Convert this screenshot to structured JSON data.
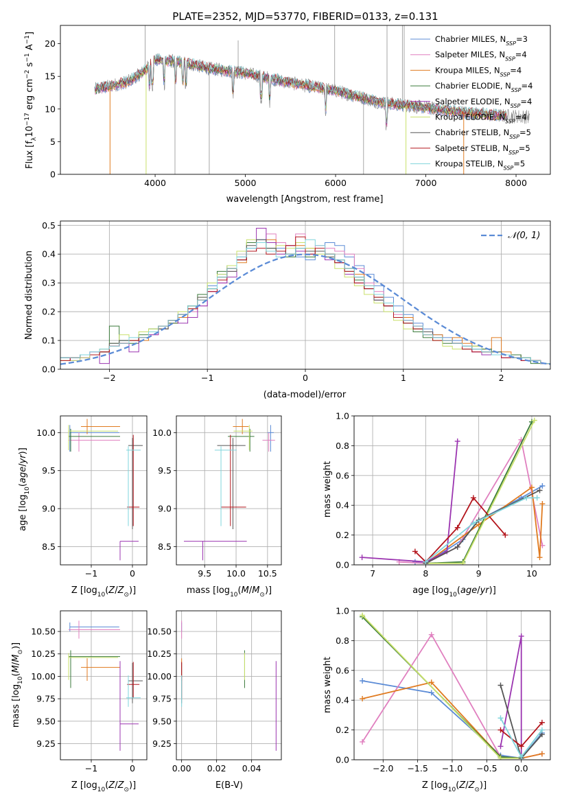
{
  "figure": {
    "title": "PLATE=2352, MJD=53770, FIBERID=0133, z=0.131"
  },
  "colors": {
    "chabrier_miles": "#5b8bd6",
    "salpeter_miles": "#e07fbf",
    "kroupa_miles": "#e07a1f",
    "chabrier_elodie": "#3a7a3a",
    "salpeter_elodie": "#9b34b0",
    "kroupa_elodie": "#c8e06a",
    "chabrier_stelib": "#555555",
    "salpeter_stelib": "#b3141b",
    "kroupa_stelib": "#7fd4dc",
    "data_gray": "#909090",
    "normal_dashed": "#5b8bd6",
    "grid": "#b0b0b0"
  },
  "chart_data": [
    {
      "id": "spectrum",
      "type": "line",
      "xlabel": "wavelength [Angstrom, rest frame]",
      "ylabel": "Flux [fλ10⁻¹⁷ erg cm⁻² s⁻¹ A⁻¹]",
      "xlim": [
        2950,
        8380
      ],
      "ylim": [
        0,
        22.8
      ],
      "xticks": [
        4000,
        5000,
        6000,
        7000,
        8000
      ],
      "yticks": [
        0,
        5,
        10,
        15,
        20
      ],
      "grid": false,
      "legend_position": "top-right",
      "legend": [
        {
          "label": "Chabrier MILES, N",
          "sub": "SSP",
          "suffix": "=3",
          "color_key": "chabrier_miles"
        },
        {
          "label": "Salpeter MILES, N",
          "sub": "SSP",
          "suffix": "=4",
          "color_key": "salpeter_miles"
        },
        {
          "label": "Kroupa MILES, N",
          "sub": "SSP",
          "suffix": "=4",
          "color_key": "kroupa_miles"
        },
        {
          "label": "Chabrier ELODIE, N",
          "sub": "SSP",
          "suffix": "=4",
          "color_key": "chabrier_elodie"
        },
        {
          "label": "Salpeter ELODIE, N",
          "sub": "SSP",
          "suffix": "=4",
          "color_key": "salpeter_elodie"
        },
        {
          "label": "Kroupa ELODIE, N",
          "sub": "SSP",
          "suffix": "=4",
          "color_key": "kroupa_elodie"
        },
        {
          "label": "Chabrier STELIB, N",
          "sub": "SSP",
          "suffix": "=5",
          "color_key": "chabrier_stelib"
        },
        {
          "label": "Salpeter STELIB, N",
          "sub": "SSP",
          "suffix": "=5",
          "color_key": "salpeter_stelib"
        },
        {
          "label": "Kroupa STELIB, N",
          "sub": "SSP",
          "suffix": "=5",
          "color_key": "kroupa_stelib"
        }
      ],
      "continuum_x": [
        3330,
        3500,
        3700,
        3850,
        4000,
        4300,
        4600,
        5000,
        5500,
        6000,
        6500,
        7000,
        7400,
        7800,
        8150
      ],
      "continuum_y": [
        13.0,
        13.5,
        14.2,
        15.5,
        17.5,
        17.2,
        16.2,
        15.5,
        14.0,
        12.8,
        11.0,
        10.2,
        9.5,
        9.0,
        8.8
      ]
    },
    {
      "id": "residuals",
      "type": "line",
      "xlabel": "(data-model)/error",
      "ylabel": "Normed distribution",
      "xlim": [
        -2.5,
        2.5
      ],
      "ylim": [
        0,
        0.515
      ],
      "xticks": [
        -2,
        -1,
        0,
        1,
        2
      ],
      "yticks": [
        0.0,
        0.1,
        0.2,
        0.3,
        0.4,
        0.5
      ],
      "grid": true,
      "legend_position": "top-right",
      "legend_label": "𝒩(0, 1)",
      "bin_width": 0.1,
      "bin_start": -2.5
    },
    {
      "id": "age_vs_Z",
      "type": "scatter",
      "xlabel": "Z [log₁₀(Z/Z⊙)]",
      "ylabel": "age  [log₁₀(age/yr)]",
      "xlim": [
        -1.75,
        0.35
      ],
      "ylim": [
        8.26,
        10.22
      ],
      "xticks": [
        -1,
        0
      ],
      "yticks": [
        8.5,
        9.0,
        9.5,
        10.0
      ],
      "grid": true
    },
    {
      "id": "age_vs_mass",
      "type": "scatter",
      "xlabel": "mass [log₁₀(M/M⊙)]",
      "ylabel": "",
      "xlim": [
        9.05,
        10.72
      ],
      "ylim": [
        8.26,
        10.22
      ],
      "xticks": [
        9.5,
        10.0,
        10.5
      ],
      "yticks": [
        8.5,
        9.0,
        9.5,
        10.0
      ],
      "grid": true
    },
    {
      "id": "massweight_vs_age",
      "type": "line",
      "xlabel": "age  [log₁₀(age/yr)]",
      "ylabel": "mass weight",
      "xlim": [
        6.65,
        10.35
      ],
      "ylim": [
        0,
        1.0
      ],
      "xticks": [
        7,
        8,
        9,
        10
      ],
      "yticks": [
        0.0,
        0.2,
        0.4,
        0.6,
        0.8,
        1.0
      ],
      "grid": true
    },
    {
      "id": "mass_vs_Z",
      "type": "scatter",
      "xlabel": "Z [log₁₀(Z/Z⊙)]",
      "ylabel": "mass [log₁₀(M/M⊙)]",
      "xlim": [
        -1.75,
        0.35
      ],
      "ylim": [
        9.07,
        10.73
      ],
      "xticks": [
        -1,
        0
      ],
      "yticks": [
        9.25,
        9.5,
        9.75,
        10.0,
        10.25,
        10.5
      ],
      "grid": true
    },
    {
      "id": "mass_vs_ebv",
      "type": "scatter",
      "xlabel": "E(B-V)",
      "ylabel": "",
      "xlim": [
        -0.003,
        0.057
      ],
      "ylim": [
        9.07,
        10.73
      ],
      "xticks": [
        0.0,
        0.02,
        0.04
      ],
      "yticks": [
        9.25,
        9.5,
        9.75,
        10.0,
        10.25,
        10.5
      ],
      "grid": true
    },
    {
      "id": "massweight_vs_Z",
      "type": "line",
      "xlabel": "Z [log₁₀(Z/Z⊙)]",
      "ylabel": "mass weight",
      "xlim": [
        -2.42,
        0.42
      ],
      "ylim": [
        0,
        1.0
      ],
      "xticks": [
        -2.0,
        -1.5,
        -1.0,
        -0.5,
        0.0
      ],
      "yticks": [
        0.0,
        0.2,
        0.4,
        0.6,
        0.8,
        1.0
      ],
      "grid": true
    }
  ],
  "fits": [
    {
      "key": "chabrier_miles",
      "age": 10.0,
      "age_err": [
        0.25,
        0.1
      ],
      "Z": -1.52,
      "Z_err": [
        0.0,
        1.2
      ],
      "mass": 10.55,
      "mass_err": [
        0.05,
        0.05
      ],
      "ebv": 0.0,
      "hist": [
        0.04,
        0.04,
        0.05,
        0.05,
        0.06,
        0.09,
        0.1,
        0.1,
        0.11,
        0.13,
        0.14,
        0.17,
        0.19,
        0.21,
        0.24,
        0.29,
        0.33,
        0.36,
        0.39,
        0.42,
        0.45,
        0.44,
        0.42,
        0.4,
        0.39,
        0.38,
        0.41,
        0.44,
        0.43,
        0.39,
        0.36,
        0.33,
        0.29,
        0.25,
        0.22,
        0.19,
        0.16,
        0.14,
        0.12,
        0.11,
        0.1,
        0.08,
        0.07,
        0.06,
        0.05,
        0.05,
        0.05,
        0.04,
        0.03,
        0.02
      ],
      "w_age": [
        [
          7.8,
          0.02
        ],
        [
          8.0,
          0.01
        ],
        [
          8.7,
          0.17
        ],
        [
          9.0,
          0.3
        ],
        [
          9.8,
          0.45
        ],
        [
          10.2,
          0.53
        ]
      ],
      "w_Z": [
        [
          -2.3,
          0.53
        ],
        [
          -1.3,
          0.45
        ],
        [
          -0.3,
          0.03
        ],
        [
          0.0,
          0.01
        ],
        [
          0.3,
          0.18
        ]
      ]
    },
    {
      "key": "salpeter_miles",
      "age": 9.9,
      "age_err": [
        0.15,
        0.1
      ],
      "Z": -1.3,
      "Z_err": [
        0.25,
        1.0
      ],
      "mass": 10.52,
      "mass_err": [
        0.1,
        0.1
      ],
      "ebv": 0.0,
      "hist": [
        0.03,
        0.04,
        0.04,
        0.05,
        0.07,
        0.08,
        0.09,
        0.1,
        0.11,
        0.12,
        0.15,
        0.16,
        0.18,
        0.2,
        0.22,
        0.27,
        0.3,
        0.34,
        0.38,
        0.41,
        0.44,
        0.47,
        0.44,
        0.43,
        0.47,
        0.41,
        0.43,
        0.42,
        0.41,
        0.4,
        0.35,
        0.3,
        0.27,
        0.22,
        0.19,
        0.17,
        0.15,
        0.13,
        0.11,
        0.1,
        0.09,
        0.08,
        0.06,
        0.05,
        0.05,
        0.05,
        0.04,
        0.03,
        0.03,
        0.02
      ],
      "w_age": [
        [
          7.5,
          0.02
        ],
        [
          8.0,
          0.01
        ],
        [
          8.6,
          0.12
        ],
        [
          9.8,
          0.84
        ],
        [
          10.2,
          0.13
        ]
      ],
      "w_Z": [
        [
          -2.3,
          0.12
        ],
        [
          -1.3,
          0.84
        ],
        [
          -0.3,
          0.02
        ],
        [
          0.0,
          0.01
        ],
        [
          0.3,
          0.04
        ]
      ]
    },
    {
      "key": "kroupa_miles",
      "age": 10.08,
      "age_err": [
        0.1,
        0.1
      ],
      "Z": -1.1,
      "Z_err": [
        0.15,
        0.8
      ],
      "mass": 10.1,
      "mass_err": [
        0.15,
        0.1
      ],
      "ebv": 0.0,
      "hist": [
        0.04,
        0.04,
        0.05,
        0.05,
        0.06,
        0.08,
        0.09,
        0.1,
        0.1,
        0.13,
        0.14,
        0.16,
        0.18,
        0.21,
        0.24,
        0.28,
        0.32,
        0.35,
        0.37,
        0.41,
        0.44,
        0.45,
        0.41,
        0.4,
        0.43,
        0.42,
        0.41,
        0.4,
        0.38,
        0.35,
        0.33,
        0.29,
        0.26,
        0.23,
        0.2,
        0.18,
        0.15,
        0.13,
        0.12,
        0.1,
        0.11,
        0.09,
        0.08,
        0.07,
        0.11,
        0.06,
        0.05,
        0.04,
        0.03,
        0.02
      ],
      "w_age": [
        [
          8.0,
          0.01
        ],
        [
          9.0,
          0.27
        ],
        [
          10.0,
          0.52
        ],
        [
          10.15,
          0.05
        ],
        [
          10.2,
          0.41
        ]
      ],
      "w_Z": [
        [
          -2.3,
          0.41
        ],
        [
          -1.3,
          0.52
        ],
        [
          -0.3,
          0.02
        ],
        [
          0.0,
          0.01
        ],
        [
          0.3,
          0.04
        ]
      ]
    },
    {
      "key": "chabrier_elodie",
      "age": 9.95,
      "age_err": [
        0.2,
        0.1
      ],
      "Z": -1.5,
      "Z_err": [
        0.05,
        1.2
      ],
      "mass": 10.22,
      "mass_err": [
        0.35,
        0.07
      ],
      "ebv": 0.036,
      "hist": [
        0.04,
        0.04,
        0.05,
        0.05,
        0.06,
        0.15,
        0.1,
        0.09,
        0.12,
        0.14,
        0.15,
        0.16,
        0.19,
        0.22,
        0.26,
        0.28,
        0.34,
        0.35,
        0.38,
        0.44,
        0.44,
        0.42,
        0.41,
        0.39,
        0.44,
        0.39,
        0.41,
        0.4,
        0.37,
        0.34,
        0.31,
        0.28,
        0.25,
        0.22,
        0.18,
        0.16,
        0.13,
        0.11,
        0.1,
        0.09,
        0.09,
        0.07,
        0.08,
        0.07,
        0.06,
        0.05,
        0.05,
        0.04,
        0.02,
        0.02
      ],
      "w_age": [
        [
          8.0,
          0.01
        ],
        [
          8.7,
          0.02
        ],
        [
          10.0,
          0.96
        ]
      ],
      "w_Z": [
        [
          -2.3,
          0.96
        ],
        [
          -0.3,
          0.02
        ],
        [
          0.0,
          0.01
        ]
      ]
    },
    {
      "key": "salpeter_elodie",
      "age": 8.57,
      "age_err": [
        0.25,
        0.0
      ],
      "Z": -0.3,
      "Z_err": [
        0.0,
        0.45
      ],
      "mass": 9.47,
      "mass_err": [
        0.3,
        0.7
      ],
      "ebv": 0.054,
      "hist": [
        0.04,
        0.03,
        0.04,
        0.06,
        0.02,
        0.08,
        0.09,
        0.06,
        0.11,
        0.12,
        0.15,
        0.17,
        0.16,
        0.18,
        0.22,
        0.27,
        0.3,
        0.32,
        0.38,
        0.41,
        0.49,
        0.44,
        0.4,
        0.43,
        0.41,
        0.4,
        0.41,
        0.38,
        0.37,
        0.33,
        0.3,
        0.28,
        0.24,
        0.22,
        0.2,
        0.17,
        0.15,
        0.13,
        0.11,
        0.1,
        0.09,
        0.07,
        0.06,
        0.05,
        0.05,
        0.04,
        0.04,
        0.03,
        0.03,
        0.02
      ],
      "w_age": [
        [
          6.8,
          0.05
        ],
        [
          8.0,
          0.02
        ],
        [
          8.4,
          0.09
        ],
        [
          8.6,
          0.83
        ]
      ],
      "w_Z": [
        [
          -0.3,
          0.09
        ],
        [
          0.0,
          0.83
        ],
        [
          0.0,
          0.01
        ]
      ]
    },
    {
      "key": "kroupa_elodie",
      "age": 10.02,
      "age_err": [
        0.25,
        0.08
      ],
      "Z": -1.55,
      "Z_err": [
        0.0,
        1.2
      ],
      "mass": 10.21,
      "mass_err": [
        0.25,
        0.05
      ],
      "ebv": 0.036,
      "hist": [
        0.03,
        0.03,
        0.04,
        0.05,
        0.07,
        0.09,
        0.12,
        0.1,
        0.13,
        0.14,
        0.15,
        0.17,
        0.2,
        0.22,
        0.25,
        0.3,
        0.33,
        0.36,
        0.41,
        0.45,
        0.44,
        0.41,
        0.43,
        0.42,
        0.44,
        0.42,
        0.4,
        0.39,
        0.35,
        0.32,
        0.29,
        0.26,
        0.23,
        0.2,
        0.17,
        0.14,
        0.14,
        0.12,
        0.1,
        0.08,
        0.07,
        0.07,
        0.08,
        0.06,
        0.06,
        0.05,
        0.04,
        0.04,
        0.03,
        0.02
      ],
      "w_age": [
        [
          8.0,
          0.01
        ],
        [
          8.7,
          0.01
        ],
        [
          10.05,
          0.97
        ]
      ],
      "w_Z": [
        [
          -2.3,
          0.97
        ],
        [
          -0.3,
          0.01
        ],
        [
          0.0,
          0.01
        ]
      ]
    },
    {
      "key": "chabrier_stelib",
      "age": 9.83,
      "age_err": [
        1.1,
        0.1
      ],
      "Z": 0.0,
      "Z_err": [
        0.1,
        0.25
      ],
      "mass": 9.95,
      "mass_err": [
        0.25,
        0.2
      ],
      "ebv": 0.0,
      "hist": [
        0.04,
        0.04,
        0.05,
        0.05,
        0.06,
        0.09,
        0.1,
        0.1,
        0.11,
        0.13,
        0.14,
        0.17,
        0.19,
        0.22,
        0.25,
        0.28,
        0.32,
        0.34,
        0.38,
        0.43,
        0.45,
        0.42,
        0.41,
        0.4,
        0.42,
        0.41,
        0.41,
        0.39,
        0.38,
        0.35,
        0.32,
        0.28,
        0.24,
        0.22,
        0.2,
        0.16,
        0.14,
        0.13,
        0.11,
        0.1,
        0.09,
        0.08,
        0.07,
        0.06,
        0.06,
        0.05,
        0.04,
        0.04,
        0.03,
        0.02
      ],
      "w_age": [
        [
          8.0,
          0.01
        ],
        [
          8.6,
          0.12
        ],
        [
          9.0,
          0.3
        ],
        [
          10.15,
          0.5
        ]
      ],
      "w_Z": [
        [
          -0.3,
          0.5
        ],
        [
          0.0,
          0.01
        ],
        [
          0.3,
          0.17
        ]
      ]
    },
    {
      "key": "salpeter_stelib",
      "age": 9.02,
      "age_err": [
        0.25,
        0.95
      ],
      "Z": 0.02,
      "Z_err": [
        0.15,
        0.15
      ],
      "mass": 9.91,
      "mass_err": [
        0.15,
        0.25
      ],
      "ebv": 0.0,
      "hist": [
        0.03,
        0.04,
        0.05,
        0.05,
        0.06,
        0.08,
        0.09,
        0.1,
        0.11,
        0.13,
        0.15,
        0.17,
        0.19,
        0.21,
        0.24,
        0.27,
        0.31,
        0.35,
        0.38,
        0.41,
        0.42,
        0.4,
        0.41,
        0.43,
        0.46,
        0.4,
        0.42,
        0.4,
        0.37,
        0.34,
        0.3,
        0.28,
        0.25,
        0.22,
        0.18,
        0.16,
        0.14,
        0.12,
        0.1,
        0.1,
        0.09,
        0.07,
        0.06,
        0.06,
        0.05,
        0.04,
        0.04,
        0.03,
        0.03,
        0.02
      ],
      "w_age": [
        [
          7.8,
          0.09
        ],
        [
          8.0,
          0.02
        ],
        [
          8.6,
          0.25
        ],
        [
          8.9,
          0.45
        ],
        [
          9.5,
          0.2
        ]
      ],
      "w_Z": [
        [
          -0.3,
          0.2
        ],
        [
          0.0,
          0.09
        ],
        [
          0.3,
          0.25
        ]
      ]
    },
    {
      "key": "kroupa_stelib",
      "age": 9.77,
      "age_err": [
        1.0,
        0.05
      ],
      "Z": -0.1,
      "Z_err": [
        0.05,
        0.3
      ],
      "mass": 9.76,
      "mass_err": [
        0.1,
        0.25
      ],
      "ebv": 0.0,
      "hist": [
        0.04,
        0.04,
        0.05,
        0.06,
        0.07,
        0.08,
        0.09,
        0.11,
        0.11,
        0.13,
        0.15,
        0.17,
        0.19,
        0.22,
        0.24,
        0.28,
        0.32,
        0.35,
        0.39,
        0.42,
        0.44,
        0.41,
        0.39,
        0.4,
        0.42,
        0.45,
        0.43,
        0.4,
        0.38,
        0.35,
        0.32,
        0.29,
        0.26,
        0.23,
        0.2,
        0.17,
        0.15,
        0.12,
        0.11,
        0.1,
        0.09,
        0.08,
        0.07,
        0.06,
        0.05,
        0.05,
        0.04,
        0.04,
        0.03,
        0.02
      ],
      "w_age": [
        [
          8.0,
          0.02
        ],
        [
          8.9,
          0.28
        ],
        [
          9.9,
          0.45
        ],
        [
          10.1,
          0.45
        ]
      ],
      "w_Z": [
        [
          -0.3,
          0.28
        ],
        [
          0.0,
          0.02
        ],
        [
          0.3,
          0.2
        ]
      ]
    }
  ]
}
